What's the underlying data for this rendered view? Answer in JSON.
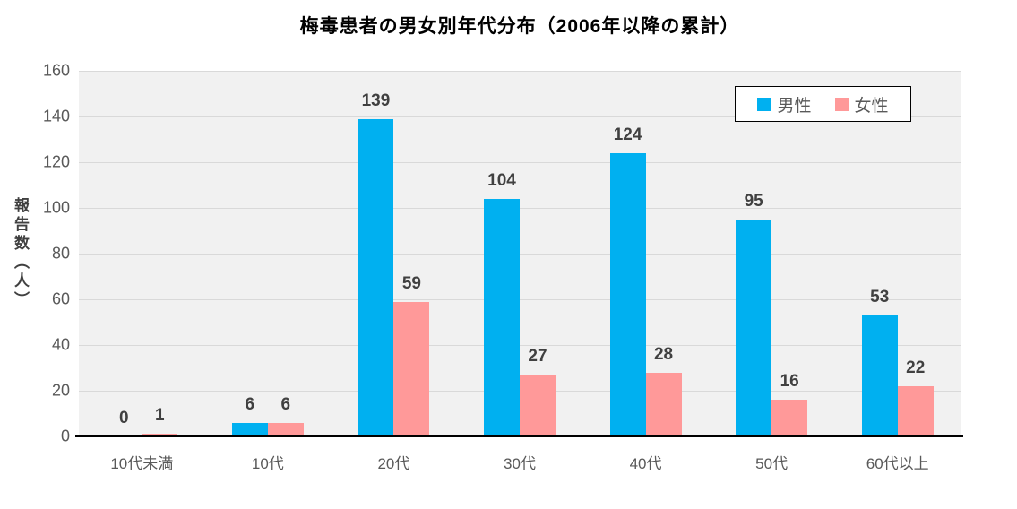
{
  "title": "梅毒患者の男女別年代分布（2006年以降の累計）",
  "chart_data": {
    "type": "bar",
    "title": "梅毒患者の男女別年代分布（2006年以降の累計）",
    "categories": [
      "10代未満",
      "10代",
      "20代",
      "30代",
      "40代",
      "50代",
      "60代以上"
    ],
    "series": [
      {
        "name": "男性",
        "color": "#00B0F0",
        "values": [
          0,
          6,
          139,
          104,
          124,
          95,
          53
        ]
      },
      {
        "name": "女性",
        "color": "#FF9999",
        "values": [
          1,
          6,
          59,
          27,
          28,
          16,
          22
        ]
      }
    ],
    "xlabel": "",
    "ylabel": "報告数（人）",
    "ylim": [
      0,
      160
    ],
    "ytick_step": 20,
    "yticks": [
      0,
      20,
      40,
      60,
      80,
      100,
      120,
      140,
      160
    ],
    "grid": true,
    "data_labels": true,
    "legend_position": "top-right"
  },
  "colors": {
    "male_bar": "#00B0F0",
    "female_bar": "#FF9999",
    "plot_background": "#F1F1F1",
    "gridline": "#D9D9D9",
    "axis_line": "#000000",
    "data_label": "#404040",
    "tick_label": "#595959",
    "title_text": "#000000",
    "legend_border": "#000000",
    "legend_background": "#FFFFFF"
  }
}
